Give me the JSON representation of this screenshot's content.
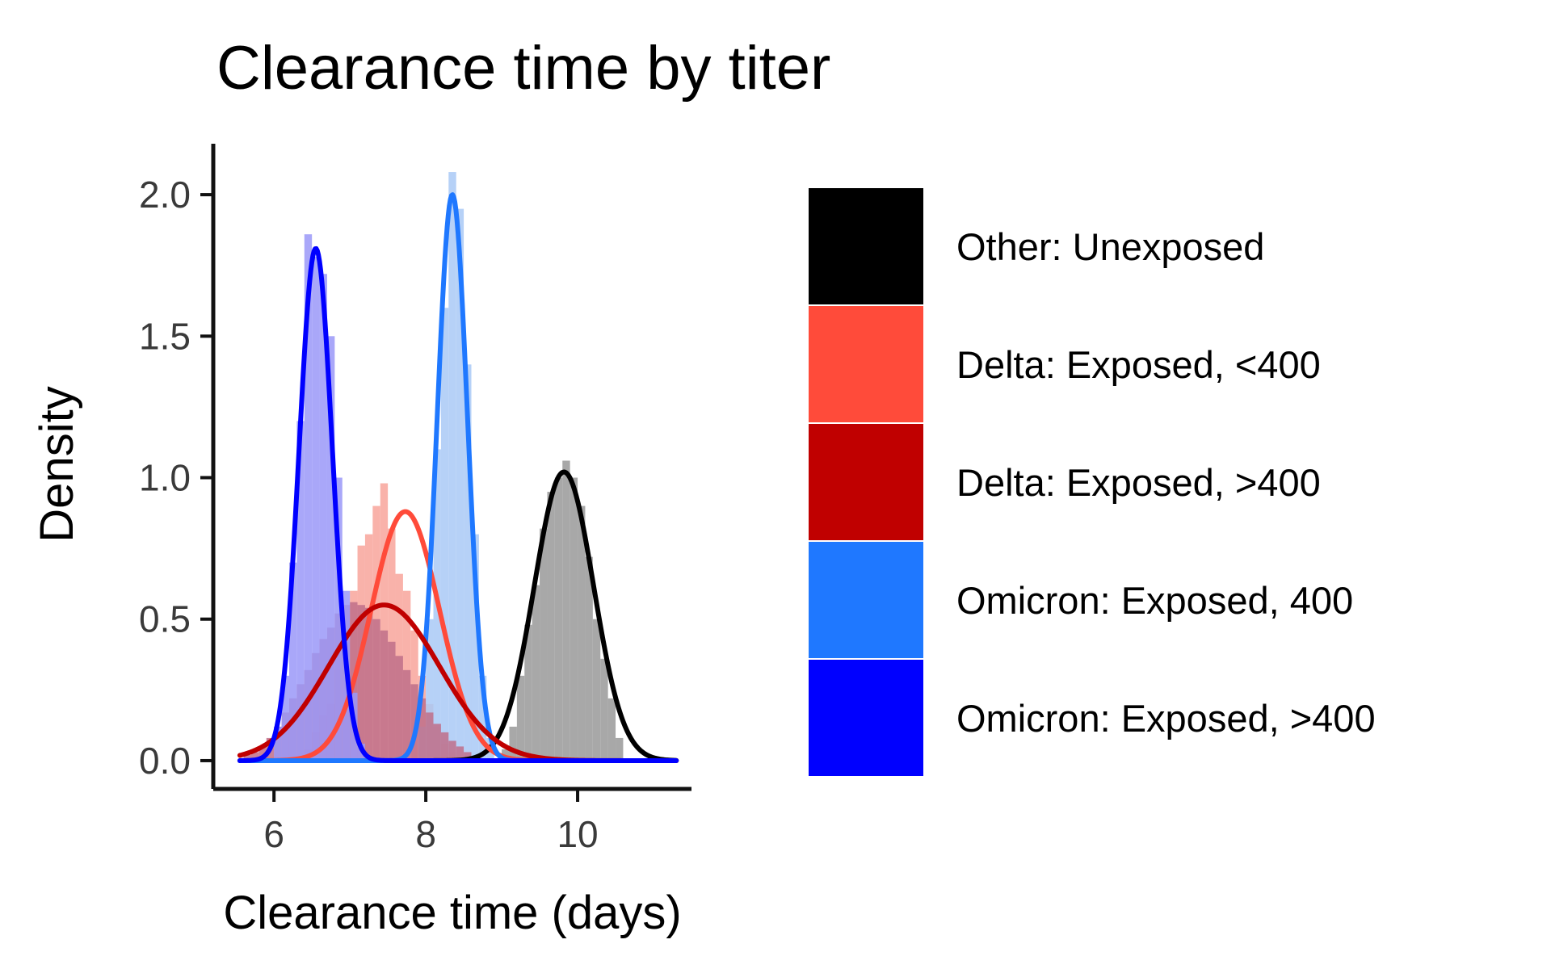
{
  "chart_data": {
    "type": "histogram",
    "title": "Clearance time by titer",
    "xlabel": "Clearance time (days)",
    "ylabel": "Density",
    "xlim": [
      5.2,
      11.5
    ],
    "ylim": [
      -0.1,
      2.18
    ],
    "x_ticks": [
      6,
      8,
      10
    ],
    "y_ticks": [
      0.0,
      0.5,
      1.0,
      1.5,
      2.0
    ],
    "x_tick_labels": [
      "6",
      "8",
      "10"
    ],
    "y_tick_labels": [
      "0.0",
      "0.5",
      "1.0",
      "1.5",
      "2.0"
    ],
    "grid": false,
    "legend_position": "right",
    "bin_width": 0.1,
    "series": [
      {
        "name": "Other: Unexposed",
        "color": "#000000",
        "hist_fill": "#999999",
        "density_mean": 9.82,
        "density_sd": 0.39,
        "density_peak": 1.02,
        "bin_start": 9.0,
        "bin_values": [
          0.04,
          0.12,
          0.3,
          0.48,
          0.62,
          0.82,
          0.95,
          1.0,
          1.06,
          1.0,
          0.9,
          0.72,
          0.5,
          0.36,
          0.22,
          0.08
        ]
      },
      {
        "name": "Delta: Exposed, <400",
        "color": "#ff4b3a",
        "hist_fill": "#f8a59b",
        "density_mean": 7.73,
        "density_sd": 0.45,
        "density_peak": 0.88,
        "bin_start": 6.4,
        "bin_values": [
          0.04,
          0.1,
          0.16,
          0.2,
          0.32,
          0.42,
          0.6,
          0.76,
          0.8,
          0.9,
          0.98,
          0.82,
          0.66,
          0.6,
          0.46,
          0.3,
          0.2,
          0.12,
          0.06,
          0.03
        ]
      },
      {
        "name": "Delta: Exposed, >400",
        "color": "#c00000",
        "hist_fill": "#bf6f8a",
        "density_mean": 7.45,
        "density_sd": 0.73,
        "density_peak": 0.55,
        "bin_start": 5.6,
        "bin_values": [
          0.02,
          0.03,
          0.05,
          0.08,
          0.12,
          0.17,
          0.22,
          0.27,
          0.32,
          0.38,
          0.43,
          0.47,
          0.52,
          0.55,
          0.56,
          0.55,
          0.54,
          0.5,
          0.46,
          0.42,
          0.37,
          0.32,
          0.27,
          0.22,
          0.17,
          0.13,
          0.1,
          0.07,
          0.05,
          0.03
        ]
      },
      {
        "name": "Omicron: Exposed, 400",
        "color": "#1f78ff",
        "hist_fill": "#a9c9f6",
        "density_mean": 8.35,
        "density_sd": 0.2,
        "density_peak": 2.0,
        "bin_start": 7.9,
        "bin_values": [
          0.12,
          0.5,
          1.1,
          1.6,
          2.08,
          1.95,
          1.4,
          0.8,
          0.3,
          0.08
        ]
      },
      {
        "name": "Omicron: Exposed, >400",
        "color": "#0000ff",
        "hist_fill": "#9a98f8",
        "density_mean": 6.55,
        "density_sd": 0.22,
        "density_peak": 1.81,
        "bin_start": 6.0,
        "bin_values": [
          0.12,
          0.3,
          0.7,
          1.2,
          1.86,
          1.78,
          1.72,
          1.5,
          1.0,
          0.6,
          0.24,
          0.06
        ]
      }
    ],
    "draw_order": [
      "Other: Unexposed",
      "Delta: Exposed, <400",
      "Omicron: Exposed, 400",
      "Delta: Exposed, >400",
      "Omicron: Exposed, >400"
    ],
    "density_x_range": [
      5.55,
      11.3
    ]
  }
}
